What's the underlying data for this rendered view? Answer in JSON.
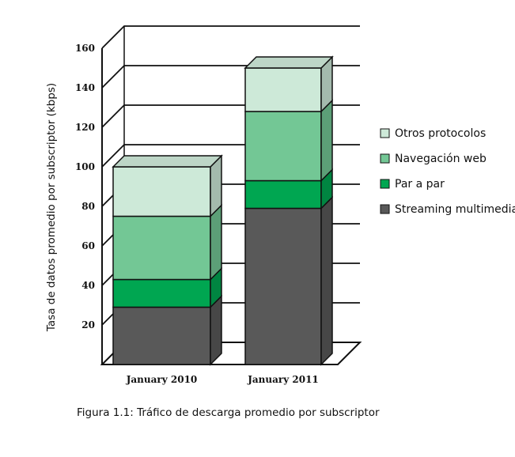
{
  "chart_data": {
    "type": "bar",
    "stacked": true,
    "three_d": true,
    "categories": [
      "January 2010",
      "January 2011"
    ],
    "series": [
      {
        "name": "Streaming multimedia",
        "color": "#595959",
        "values": [
          29,
          79
        ]
      },
      {
        "name": "Par a par",
        "color": "#00a651",
        "values": [
          14,
          14
        ]
      },
      {
        "name": "Navegación web",
        "color": "#73c795",
        "values": [
          32,
          35
        ]
      },
      {
        "name": "Otros protocolos",
        "color": "#cde9d8",
        "values": [
          25,
          22
        ]
      }
    ],
    "ylabel": "Tasa de datos promedio por subscriptor (kbps)",
    "ylim": [
      0,
      160
    ],
    "yticks": [
      20,
      40,
      60,
      80,
      100,
      120,
      140,
      160
    ],
    "grid": true,
    "legend_position": "right",
    "legend_order": [
      "Otros protocolos",
      "Navegación web",
      "Par a par",
      "Streaming multimedia"
    ]
  },
  "caption": "Figura 1.1: Tráfico de descarga promedio por subscriptor"
}
